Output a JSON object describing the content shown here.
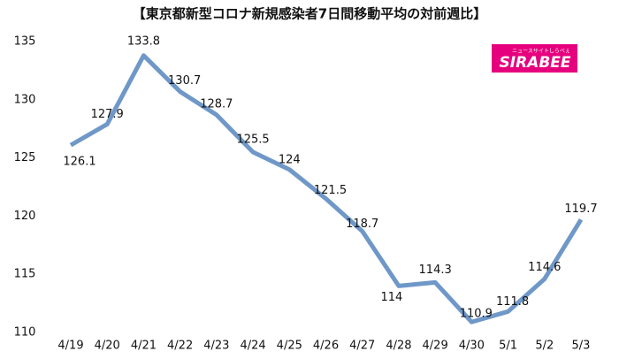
{
  "chart_data": {
    "type": "line",
    "title": "【東京都新型コロナ新規感染者7日間移動平均の対前週比】",
    "logo": "SIRABEE",
    "logo_tagline": "ニュースサイトしらべぇ",
    "categories": [
      "4/19",
      "4/20",
      "4/21",
      "4/22",
      "4/23",
      "4/24",
      "4/25",
      "4/26",
      "4/27",
      "4/28",
      "4/29",
      "4/30",
      "5/1",
      "5/2",
      "5/3"
    ],
    "series": [
      {
        "name": "対前週比",
        "color": "#6f98c8",
        "values": [
          126.1,
          127.9,
          133.8,
          130.7,
          128.7,
          125.5,
          124,
          121.5,
          118.7,
          114,
          114.3,
          110.9,
          111.8,
          114.6,
          119.7
        ]
      }
    ],
    "ylim": [
      110,
      135
    ],
    "yticks": [
      110,
      115,
      120,
      125,
      130,
      135
    ],
    "grid": false
  }
}
